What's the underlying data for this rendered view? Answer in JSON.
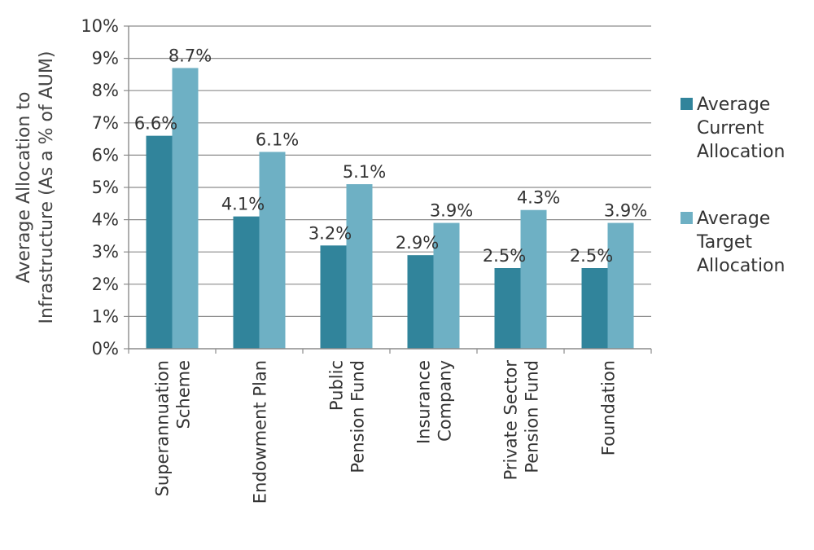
{
  "chart_data": {
    "type": "bar",
    "title": "",
    "ylabel_lines": [
      "Average Allocation to",
      "Infrastructure (As a % of AUM)"
    ],
    "xlabel": "",
    "ylim": [
      0,
      10
    ],
    "y_ticks": [
      0,
      1,
      2,
      3,
      4,
      5,
      6,
      7,
      8,
      9,
      10
    ],
    "y_tick_suffix": "%",
    "grid": true,
    "legend_position": "right",
    "categories": [
      [
        "Superannuation",
        "Scheme"
      ],
      [
        "Endowment Plan"
      ],
      [
        "Public",
        "Pension Fund"
      ],
      [
        "Insurance",
        "Company"
      ],
      [
        "Private Sector",
        "Pension Fund"
      ],
      [
        "Foundation"
      ]
    ],
    "series": [
      {
        "name_lines": [
          "Average",
          "Current",
          "Allocation"
        ],
        "color": "#31849b",
        "values": [
          6.6,
          4.1,
          3.2,
          2.9,
          2.5,
          2.5
        ],
        "labels": [
          "6.6%",
          "4.1%",
          "3.2%",
          "2.9%",
          "2.5%",
          "2.5%"
        ]
      },
      {
        "name_lines": [
          "Average",
          "Target",
          "Allocation"
        ],
        "color": "#6eb0c4",
        "values": [
          8.7,
          6.1,
          5.1,
          3.9,
          4.3,
          3.9
        ],
        "labels": [
          "8.7%",
          "6.1%",
          "5.1%",
          "3.9%",
          "4.3%",
          "3.9%"
        ]
      }
    ]
  }
}
